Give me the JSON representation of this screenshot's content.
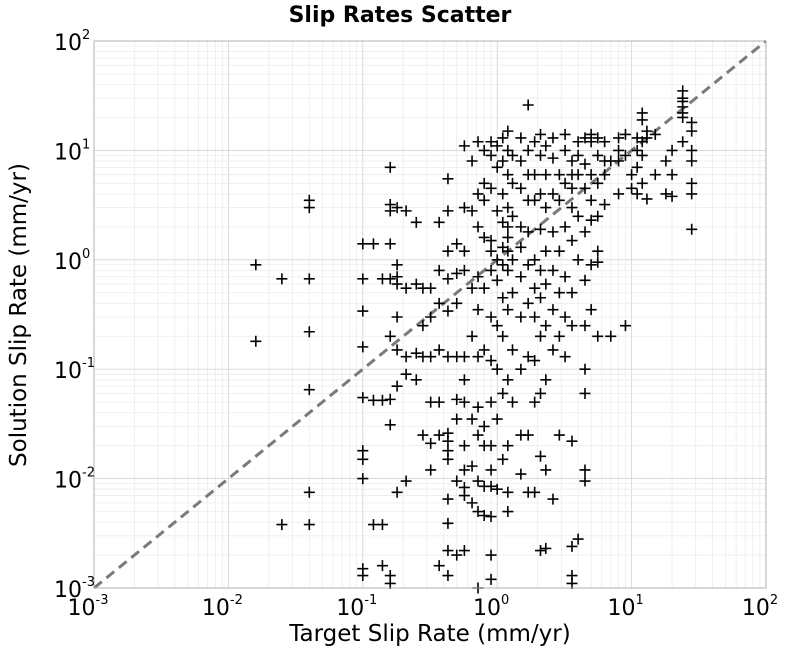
{
  "chart_data": {
    "type": "scatter",
    "title": "Slip Rates Scatter",
    "xlabel": "Target Slip Rate (mm/yr)",
    "ylabel": "Solution Slip Rate (mm/yr)",
    "xscale": "log",
    "yscale": "log",
    "xlim": [
      0.001,
      100
    ],
    "ylim": [
      0.001,
      100
    ],
    "grid": true,
    "marker": "plus",
    "marker_color": "#000000",
    "reference_line": {
      "style": "dashed",
      "color": "#7a7a7a",
      "x": [
        0.001,
        100
      ],
      "y": [
        0.001,
        100
      ]
    },
    "x_ticks": [
      {
        "base": "10",
        "exp": "-3",
        "value": 0.001
      },
      {
        "base": "10",
        "exp": "-2",
        "value": 0.01
      },
      {
        "base": "10",
        "exp": "-1",
        "value": 0.1
      },
      {
        "base": "10",
        "exp": "0",
        "value": 1
      },
      {
        "base": "10",
        "exp": "1",
        "value": 10
      },
      {
        "base": "10",
        "exp": "2",
        "value": 100
      }
    ],
    "y_ticks": [
      {
        "base": "10",
        "exp": "-3",
        "value": 0.001
      },
      {
        "base": "10",
        "exp": "-2",
        "value": 0.01
      },
      {
        "base": "10",
        "exp": "-1",
        "value": 0.1
      },
      {
        "base": "10",
        "exp": "0",
        "value": 1
      },
      {
        "base": "10",
        "exp": "1",
        "value": 10
      },
      {
        "base": "10",
        "exp": "2",
        "value": 100
      }
    ],
    "points": [
      [
        0.016,
        0.9
      ],
      [
        0.016,
        0.18
      ],
      [
        0.025,
        0.67
      ],
      [
        0.025,
        0.0038
      ],
      [
        0.04,
        3.5
      ],
      [
        0.04,
        3.0
      ],
      [
        0.04,
        0.67
      ],
      [
        0.04,
        0.22
      ],
      [
        0.04,
        0.065
      ],
      [
        0.04,
        0.0075
      ],
      [
        0.04,
        0.0038
      ],
      [
        0.1,
        1.4
      ],
      [
        0.1,
        0.67
      ],
      [
        0.1,
        0.34
      ],
      [
        0.1,
        0.16
      ],
      [
        0.1,
        0.055
      ],
      [
        0.1,
        0.018
      ],
      [
        0.1,
        0.015
      ],
      [
        0.1,
        0.01
      ],
      [
        0.1,
        0.0015
      ],
      [
        0.1,
        0.0013
      ],
      [
        0.12,
        1.4
      ],
      [
        0.12,
        0.052
      ],
      [
        0.12,
        0.0038
      ],
      [
        0.14,
        0.67
      ],
      [
        0.14,
        0.052
      ],
      [
        0.14,
        0.0038
      ],
      [
        0.14,
        0.0016
      ],
      [
        0.16,
        7.0
      ],
      [
        0.16,
        3.2
      ],
      [
        0.16,
        2.8
      ],
      [
        0.16,
        1.4
      ],
      [
        0.16,
        0.67
      ],
      [
        0.16,
        0.2
      ],
      [
        0.16,
        0.053
      ],
      [
        0.16,
        0.031
      ],
      [
        0.16,
        0.0013
      ],
      [
        0.16,
        0.0011
      ],
      [
        0.18,
        3.0
      ],
      [
        0.18,
        0.9
      ],
      [
        0.18,
        0.7
      ],
      [
        0.18,
        0.6
      ],
      [
        0.18,
        0.3
      ],
      [
        0.18,
        0.15
      ],
      [
        0.18,
        0.07
      ],
      [
        0.18,
        0.0075
      ],
      [
        0.21,
        2.8
      ],
      [
        0.21,
        0.55
      ],
      [
        0.21,
        0.13
      ],
      [
        0.21,
        0.09
      ],
      [
        0.21,
        0.0095
      ],
      [
        0.25,
        2.2
      ],
      [
        0.25,
        0.6
      ],
      [
        0.25,
        0.14
      ],
      [
        0.25,
        0.08
      ],
      [
        0.28,
        0.55
      ],
      [
        0.28,
        0.25
      ],
      [
        0.28,
        0.13
      ],
      [
        0.28,
        0.025
      ],
      [
        0.32,
        0.55
      ],
      [
        0.32,
        0.3
      ],
      [
        0.32,
        0.13
      ],
      [
        0.32,
        0.05
      ],
      [
        0.32,
        0.021
      ],
      [
        0.32,
        0.012
      ],
      [
        0.37,
        2.2
      ],
      [
        0.37,
        0.8
      ],
      [
        0.37,
        0.4
      ],
      [
        0.37,
        0.15
      ],
      [
        0.37,
        0.05
      ],
      [
        0.37,
        0.025
      ],
      [
        0.37,
        0.0016
      ],
      [
        0.43,
        5.5
      ],
      [
        0.43,
        2.8
      ],
      [
        0.43,
        1.2
      ],
      [
        0.43,
        0.67
      ],
      [
        0.43,
        0.34
      ],
      [
        0.43,
        0.13
      ],
      [
        0.43,
        0.026
      ],
      [
        0.43,
        0.022
      ],
      [
        0.43,
        0.018
      ],
      [
        0.43,
        0.015
      ],
      [
        0.43,
        0.0065
      ],
      [
        0.43,
        0.0039
      ],
      [
        0.43,
        0.0022
      ],
      [
        0.43,
        0.0013
      ],
      [
        0.5,
        1.4
      ],
      [
        0.5,
        0.75
      ],
      [
        0.5,
        0.4
      ],
      [
        0.5,
        0.13
      ],
      [
        0.5,
        0.053
      ],
      [
        0.5,
        0.035
      ],
      [
        0.5,
        0.0095
      ],
      [
        0.5,
        0.002
      ],
      [
        0.57,
        11.0
      ],
      [
        0.57,
        3.0
      ],
      [
        0.57,
        1.2
      ],
      [
        0.57,
        0.8
      ],
      [
        0.57,
        0.13
      ],
      [
        0.57,
        0.08
      ],
      [
        0.57,
        0.05
      ],
      [
        0.57,
        0.02
      ],
      [
        0.57,
        0.012
      ],
      [
        0.57,
        0.0083
      ],
      [
        0.57,
        0.007
      ],
      [
        0.57,
        0.0022
      ],
      [
        0.65,
        8.0
      ],
      [
        0.65,
        2.8
      ],
      [
        0.65,
        0.55
      ],
      [
        0.65,
        0.2
      ],
      [
        0.65,
        0.035
      ],
      [
        0.65,
        0.013
      ],
      [
        0.65,
        0.006
      ],
      [
        0.72,
        12.0
      ],
      [
        0.72,
        4.0
      ],
      [
        0.72,
        2.0
      ],
      [
        0.72,
        0.7
      ],
      [
        0.72,
        0.35
      ],
      [
        0.72,
        0.13
      ],
      [
        0.72,
        0.045
      ],
      [
        0.72,
        0.025
      ],
      [
        0.72,
        0.0095
      ],
      [
        0.72,
        0.005
      ],
      [
        0.72,
        0.001
      ],
      [
        0.8,
        10.0
      ],
      [
        0.8,
        5.0
      ],
      [
        0.8,
        3.5
      ],
      [
        0.8,
        1.6
      ],
      [
        0.8,
        0.55
      ],
      [
        0.8,
        0.15
      ],
      [
        0.8,
        0.03
      ],
      [
        0.8,
        0.02
      ],
      [
        0.8,
        0.0085
      ],
      [
        0.8,
        0.0046
      ],
      [
        0.9,
        12.0
      ],
      [
        0.9,
        9.0
      ],
      [
        0.9,
        4.5
      ],
      [
        0.9,
        1.5
      ],
      [
        0.9,
        1.2
      ],
      [
        0.9,
        0.8
      ],
      [
        0.9,
        0.3
      ],
      [
        0.9,
        0.12
      ],
      [
        0.9,
        0.05
      ],
      [
        0.9,
        0.02
      ],
      [
        0.9,
        0.012
      ],
      [
        0.9,
        0.0085
      ],
      [
        0.9,
        0.0045
      ],
      [
        0.9,
        0.002
      ],
      [
        0.9,
        0.0012
      ],
      [
        1.0,
        11.0
      ],
      [
        1.0,
        7.0
      ],
      [
        1.0,
        2.8
      ],
      [
        1.0,
        1.0
      ],
      [
        1.0,
        0.65
      ],
      [
        1.0,
        0.25
      ],
      [
        1.0,
        0.1
      ],
      [
        1.0,
        0.035
      ],
      [
        1.0,
        0.008
      ],
      [
        1.1,
        13.0
      ],
      [
        1.1,
        8.0
      ],
      [
        1.1,
        4.0
      ],
      [
        1.1,
        2.2
      ],
      [
        1.1,
        1.3
      ],
      [
        1.1,
        0.9
      ],
      [
        1.1,
        0.45
      ],
      [
        1.1,
        0.2
      ],
      [
        1.1,
        0.06
      ],
      [
        1.1,
        0.015
      ],
      [
        1.2,
        15.0
      ],
      [
        1.2,
        10.0
      ],
      [
        1.2,
        6.0
      ],
      [
        1.2,
        3.0
      ],
      [
        1.2,
        2.0
      ],
      [
        1.2,
        1.6
      ],
      [
        1.2,
        1.2
      ],
      [
        1.2,
        0.8
      ],
      [
        1.2,
        0.35
      ],
      [
        1.2,
        0.08
      ],
      [
        1.2,
        0.02
      ],
      [
        1.2,
        0.0075
      ],
      [
        1.2,
        0.005
      ],
      [
        1.3,
        9.0
      ],
      [
        1.3,
        5.0
      ],
      [
        1.3,
        2.5
      ],
      [
        1.3,
        1.0
      ],
      [
        1.3,
        0.5
      ],
      [
        1.3,
        0.15
      ],
      [
        1.3,
        0.05
      ],
      [
        1.5,
        13.0
      ],
      [
        1.5,
        8.0
      ],
      [
        1.5,
        4.5
      ],
      [
        1.5,
        2.0
      ],
      [
        1.5,
        1.3
      ],
      [
        1.5,
        0.7
      ],
      [
        1.5,
        0.3
      ],
      [
        1.5,
        0.1
      ],
      [
        1.5,
        0.025
      ],
      [
        1.5,
        0.011
      ],
      [
        1.7,
        26.0
      ],
      [
        1.7,
        10.0
      ],
      [
        1.7,
        6.0
      ],
      [
        1.7,
        3.5
      ],
      [
        1.7,
        1.8
      ],
      [
        1.7,
        0.9
      ],
      [
        1.7,
        0.4
      ],
      [
        1.7,
        0.13
      ],
      [
        1.7,
        0.025
      ],
      [
        1.7,
        0.0075
      ],
      [
        1.9,
        12.0
      ],
      [
        1.9,
        6.0
      ],
      [
        1.9,
        3.5
      ],
      [
        1.9,
        1.0
      ],
      [
        1.9,
        0.55
      ],
      [
        1.9,
        0.3
      ],
      [
        1.9,
        0.12
      ],
      [
        1.9,
        0.05
      ],
      [
        1.9,
        0.0075
      ],
      [
        2.1,
        14.0
      ],
      [
        2.1,
        9.0
      ],
      [
        2.1,
        4.0
      ],
      [
        2.1,
        1.9
      ],
      [
        2.1,
        0.8
      ],
      [
        2.1,
        0.45
      ],
      [
        2.1,
        0.2
      ],
      [
        2.1,
        0.06
      ],
      [
        2.1,
        0.016
      ],
      [
        2.1,
        0.0022
      ],
      [
        2.3,
        11.0
      ],
      [
        2.3,
        6.0
      ],
      [
        2.3,
        3.0
      ],
      [
        2.3,
        1.2
      ],
      [
        2.3,
        0.6
      ],
      [
        2.3,
        0.25
      ],
      [
        2.3,
        0.08
      ],
      [
        2.3,
        0.012
      ],
      [
        2.3,
        0.0023
      ],
      [
        2.6,
        13.0
      ],
      [
        2.6,
        8.5
      ],
      [
        2.6,
        4.0
      ],
      [
        2.6,
        1.8
      ],
      [
        2.6,
        0.8
      ],
      [
        2.6,
        0.35
      ],
      [
        2.6,
        0.15
      ],
      [
        2.6,
        0.0065
      ],
      [
        2.9,
        6.0
      ],
      [
        2.9,
        3.5
      ],
      [
        2.9,
        1.2
      ],
      [
        2.9,
        0.5
      ],
      [
        2.9,
        0.2
      ],
      [
        2.9,
        0.025
      ],
      [
        3.2,
        14.0
      ],
      [
        3.2,
        10.0
      ],
      [
        3.2,
        5.0
      ],
      [
        3.2,
        2.0
      ],
      [
        3.2,
        0.7
      ],
      [
        3.2,
        0.3
      ],
      [
        3.2,
        0.13
      ],
      [
        3.6,
        8.0
      ],
      [
        3.6,
        6.0
      ],
      [
        3.6,
        4.5
      ],
      [
        3.6,
        3.0
      ],
      [
        3.6,
        1.5
      ],
      [
        3.6,
        0.5
      ],
      [
        3.6,
        0.25
      ],
      [
        3.6,
        0.022
      ],
      [
        3.6,
        0.0024
      ],
      [
        3.6,
        0.0013
      ],
      [
        3.6,
        0.0011
      ],
      [
        4.0,
        12.0
      ],
      [
        4.0,
        9.0
      ],
      [
        4.0,
        6.0
      ],
      [
        4.0,
        2.5
      ],
      [
        4.0,
        1.0
      ],
      [
        4.0,
        0.0028
      ],
      [
        4.5,
        13.0
      ],
      [
        4.5,
        7.5
      ],
      [
        4.5,
        4.5
      ],
      [
        4.5,
        1.8
      ],
      [
        4.5,
        0.65
      ],
      [
        4.5,
        0.25
      ],
      [
        4.5,
        0.1
      ],
      [
        4.5,
        0.06
      ],
      [
        4.5,
        0.012
      ],
      [
        4.5,
        0.0095
      ],
      [
        5.0,
        14.0
      ],
      [
        5.0,
        12.0
      ],
      [
        5.0,
        6.0
      ],
      [
        5.0,
        3.5
      ],
      [
        5.0,
        2.3
      ],
      [
        5.0,
        0.9
      ],
      [
        5.0,
        0.35
      ],
      [
        5.6,
        13.0
      ],
      [
        5.6,
        9.0
      ],
      [
        5.6,
        5.0
      ],
      [
        5.6,
        2.5
      ],
      [
        5.6,
        1.2
      ],
      [
        5.6,
        0.95
      ],
      [
        5.6,
        0.2
      ],
      [
        6.3,
        12.0
      ],
      [
        6.3,
        8.0
      ],
      [
        6.3,
        6.0
      ],
      [
        6.3,
        3.2
      ],
      [
        7.0,
        8.0
      ],
      [
        7.0,
        0.2
      ],
      [
        8.0,
        13.0
      ],
      [
        8.0,
        10.0
      ],
      [
        8.0,
        8.0
      ],
      [
        8.0,
        4.0
      ],
      [
        9.0,
        14.0
      ],
      [
        9.0,
        9.0
      ],
      [
        9.0,
        0.25
      ],
      [
        10.0,
        4.5
      ],
      [
        10.0,
        6.0
      ],
      [
        11.0,
        13.0
      ],
      [
        11.0,
        10.0
      ],
      [
        11.0,
        7.0
      ],
      [
        11.0,
        4.0
      ],
      [
        12.0,
        22.0
      ],
      [
        12.0,
        19.0
      ],
      [
        12.0,
        12.0
      ],
      [
        12.0,
        9.0
      ],
      [
        12.0,
        5.0
      ],
      [
        13.0,
        15.0
      ],
      [
        13.0,
        13.0
      ],
      [
        13.0,
        3.6
      ],
      [
        15.0,
        14.0
      ],
      [
        15.0,
        6.0
      ],
      [
        18.0,
        8.0
      ],
      [
        18.0,
        4.0
      ],
      [
        20.0,
        10.0
      ],
      [
        20.0,
        6.0
      ],
      [
        20.0,
        3.8
      ],
      [
        24.0,
        35.0
      ],
      [
        24.0,
        30.0
      ],
      [
        24.0,
        28.0
      ],
      [
        24.0,
        25.0
      ],
      [
        24.0,
        22.0
      ],
      [
        24.0,
        20.0
      ],
      [
        24.0,
        12.0
      ],
      [
        28.0,
        18.0
      ],
      [
        28.0,
        15.0
      ],
      [
        28.0,
        10.0
      ],
      [
        28.0,
        8.0
      ],
      [
        28.0,
        5.0
      ],
      [
        28.0,
        4.0
      ],
      [
        28.0,
        1.9
      ]
    ]
  }
}
